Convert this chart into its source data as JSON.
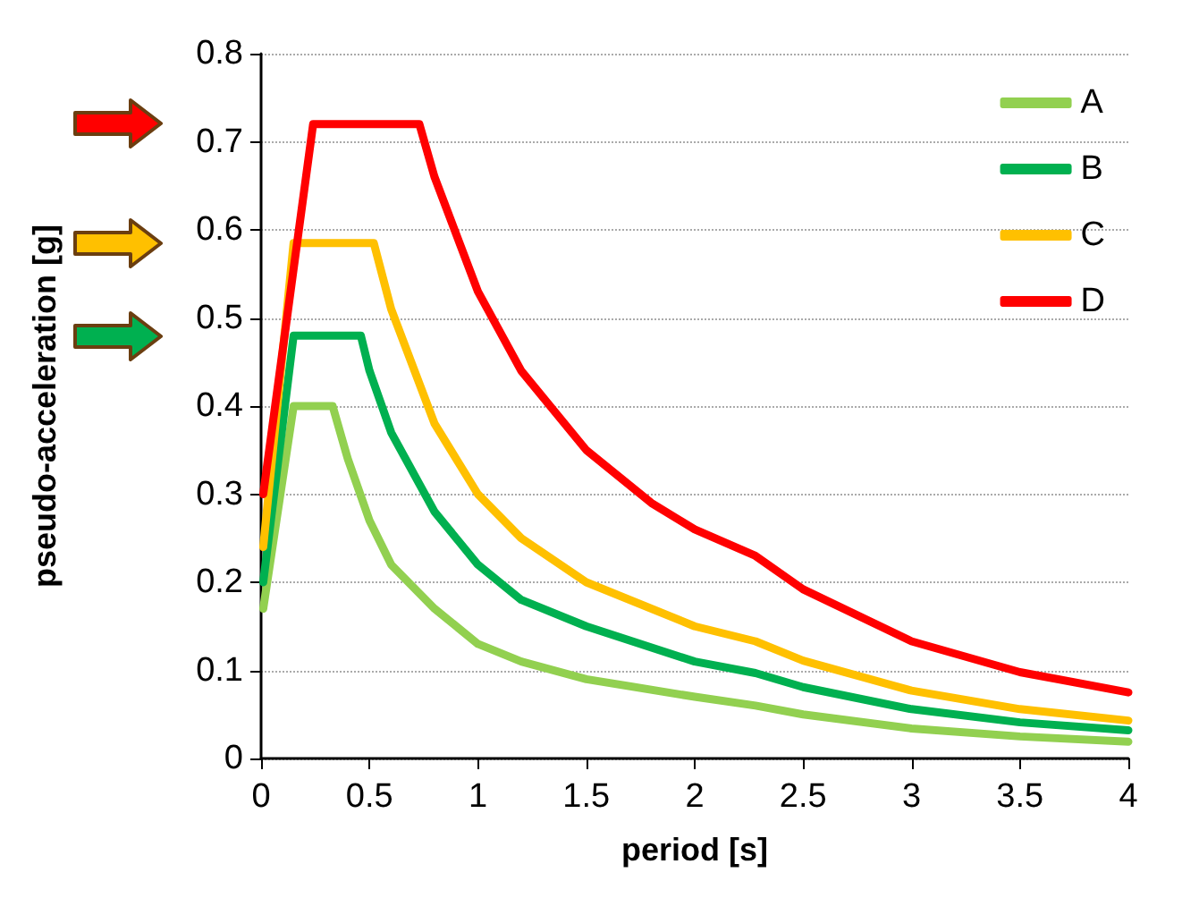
{
  "chart_data": {
    "type": "line",
    "xlabel": "period [s]",
    "ylabel": "pseudo-acceleration [g]",
    "xlim": [
      0,
      4
    ],
    "xticks": [
      0,
      0.5,
      1,
      1.5,
      2,
      2.5,
      3,
      3.5,
      4
    ],
    "ylim": [
      0,
      0.8
    ],
    "yticks": [
      0,
      0.1,
      0.2,
      0.3,
      0.4,
      0.5,
      0.6,
      0.7,
      0.8
    ],
    "grid": "y",
    "legend": "top right",
    "marker": "none",
    "line_style": "solid",
    "series": [
      {
        "name": "A",
        "color": "#92d050",
        "x": [
          0.01,
          0.15,
          0.33,
          0.4,
          0.5,
          0.6,
          0.8,
          1,
          1.2,
          1.5,
          2,
          2.28,
          2.5,
          3,
          3.5,
          4
        ],
        "values": [
          0.17,
          0.4,
          0.4,
          0.34,
          0.27,
          0.22,
          0.17,
          0.13,
          0.11,
          0.09,
          0.07,
          0.06,
          0.05,
          0.034,
          0.025,
          0.019
        ]
      },
      {
        "name": "B",
        "color": "#00b050",
        "x": [
          0.01,
          0.15,
          0.46,
          0.5,
          0.6,
          0.8,
          1,
          1.2,
          1.5,
          2,
          2.28,
          2.5,
          3,
          3.5,
          4
        ],
        "values": [
          0.2,
          0.48,
          0.48,
          0.44,
          0.37,
          0.28,
          0.22,
          0.18,
          0.15,
          0.11,
          0.097,
          0.081,
          0.056,
          0.041,
          0.032
        ]
      },
      {
        "name": "C",
        "color": "#ffc000",
        "x": [
          0.01,
          0.15,
          0.52,
          0.6,
          0.8,
          1,
          1.2,
          1.5,
          2,
          2.28,
          2.5,
          3,
          3.5,
          4
        ],
        "values": [
          0.24,
          0.585,
          0.585,
          0.51,
          0.38,
          0.3,
          0.25,
          0.2,
          0.15,
          0.133,
          0.111,
          0.077,
          0.056,
          0.043
        ]
      },
      {
        "name": "D",
        "color": "#ff0000",
        "x": [
          0.01,
          0.24,
          0.73,
          0.8,
          1,
          1.2,
          1.5,
          1.8,
          2,
          2.28,
          2.5,
          3,
          3.5,
          4
        ],
        "values": [
          0.3,
          0.72,
          0.72,
          0.66,
          0.53,
          0.44,
          0.35,
          0.29,
          0.26,
          0.23,
          0.192,
          0.133,
          0.098,
          0.075
        ]
      }
    ]
  }
}
